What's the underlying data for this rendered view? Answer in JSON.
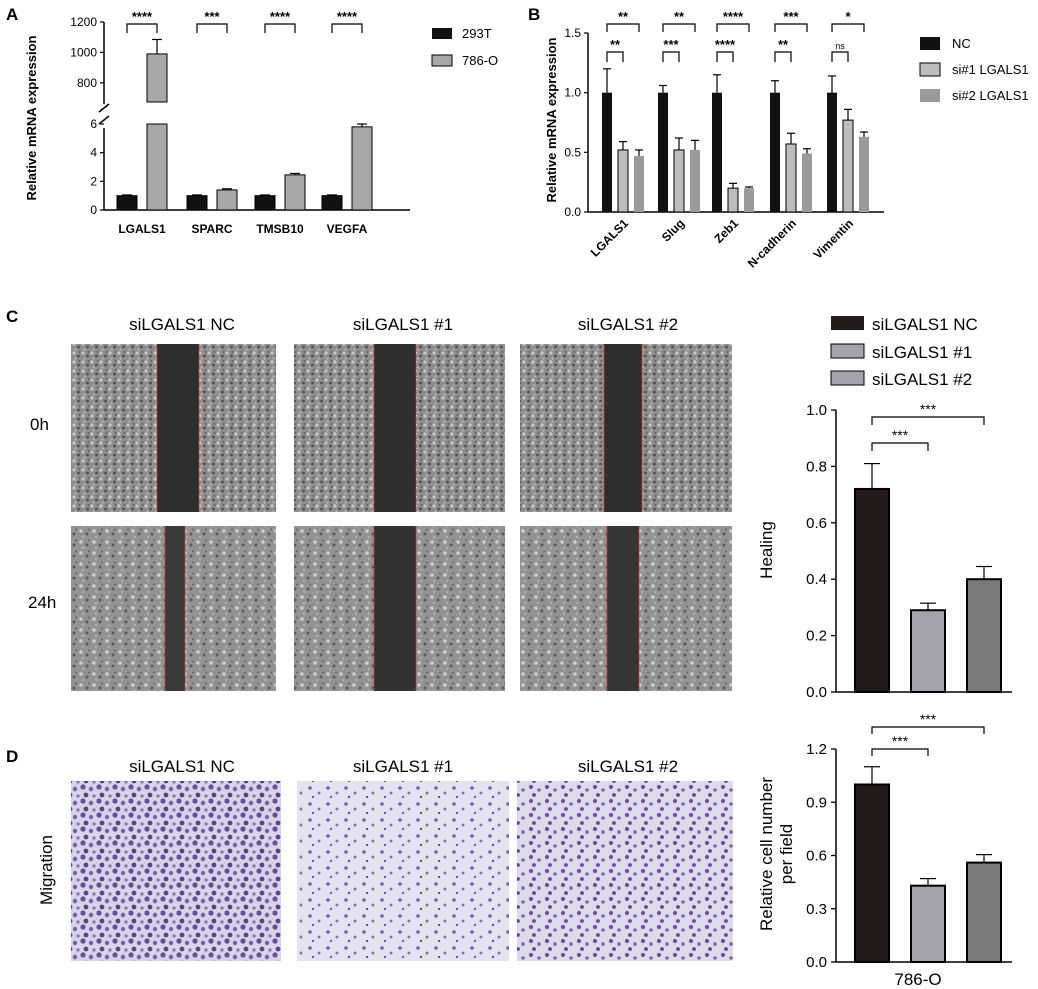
{
  "panelA": {
    "label": "A",
    "ylabel": "Relative mRNA expression",
    "categories": [
      "LGALS1",
      "SPARC",
      "TMSB10",
      "VEGFA"
    ],
    "legend": [
      "293T",
      "786-O"
    ],
    "colors": [
      "#111111",
      "#a8a8a8"
    ],
    "lowerTicks": [
      "0",
      "2",
      "4",
      "6"
    ],
    "upperTicks": [
      "800",
      "1000",
      "1200"
    ],
    "sig": [
      "****",
      "***",
      "****",
      "****"
    ]
  },
  "panelB": {
    "label": "B",
    "ylabel": "Relative mRNA expression",
    "categories": [
      "LGALS1",
      "Slug",
      "Zeb1",
      "N-cadherin",
      "Vimentin"
    ],
    "legend": [
      "NC",
      "si#1 LGALS1",
      "si#2 LGALS1"
    ],
    "colors": [
      "#111111",
      "#bdbdbd",
      "#9a9a9a"
    ],
    "ticks": [
      "0.0",
      "0.5",
      "1.0",
      "1.5"
    ],
    "sigOuter": [
      "**",
      "**",
      "****",
      "***",
      "*"
    ],
    "sigInner": [
      "**",
      "***",
      "****",
      "**",
      "ns"
    ]
  },
  "panelC": {
    "label": "C",
    "columnHeaders": [
      "siLGALS1 NC",
      "siLGALS1 #1",
      "siLGALS1 #2"
    ],
    "rowLabels": [
      "0h",
      "24h"
    ],
    "legend": [
      "siLGALS1 NC",
      "siLGALS1 #1",
      "siLGALS1 #2"
    ],
    "colors": [
      "#231a1a",
      "#a3a3ab",
      "#7a7a7a"
    ],
    "ylabel": "Healing",
    "ticks": [
      "0.0",
      "0.2",
      "0.4",
      "0.6",
      "0.8",
      "1.0"
    ],
    "sig": [
      "***",
      "***"
    ]
  },
  "panelD": {
    "label": "D",
    "columnHeaders": [
      "siLGALS1 NC",
      "siLGALS1 #1",
      "siLGALS1 #2"
    ],
    "rowLabel": "Migration",
    "ylabel_line1": "Relative cell number",
    "ylabel_line2": "per field",
    "xlabel": "786-O",
    "ticks": [
      "0.0",
      "0.3",
      "0.6",
      "0.9",
      "1.2"
    ],
    "sig": [
      "***",
      "***"
    ]
  },
  "chart_data": [
    {
      "type": "bar",
      "panel": "A",
      "ylabel": "Relative mRNA expression",
      "categories": [
        "LGALS1",
        "SPARC",
        "TMSB10",
        "VEGFA"
      ],
      "broken_axis": true,
      "lower_ylim": [
        0,
        6
      ],
      "upper_ylim": [
        700,
        1200
      ],
      "series": [
        {
          "name": "293T",
          "values": [
            1.0,
            1.0,
            1.0,
            1.0
          ],
          "errors": [
            0.05,
            0.05,
            0.05,
            0.05
          ]
        },
        {
          "name": "786-O",
          "values": [
            990,
            1.4,
            2.45,
            5.8
          ],
          "errors": [
            95,
            0.08,
            0.1,
            0.2
          ]
        }
      ]
    },
    {
      "type": "bar",
      "panel": "B",
      "ylabel": "Relative mRNA expression",
      "categories": [
        "LGALS1",
        "Slug",
        "Zeb1",
        "N-cadherin",
        "Vimentin"
      ],
      "ylim": [
        0,
        1.5
      ],
      "series": [
        {
          "name": "NC",
          "values": [
            1.0,
            1.0,
            1.0,
            1.0,
            1.0
          ],
          "errors": [
            0.2,
            0.06,
            0.15,
            0.1,
            0.14
          ]
        },
        {
          "name": "si#1 LGALS1",
          "values": [
            0.52,
            0.52,
            0.2,
            0.57,
            0.77
          ],
          "errors": [
            0.07,
            0.1,
            0.04,
            0.09,
            0.09
          ]
        },
        {
          "name": "si#2 LGALS1",
          "values": [
            0.47,
            0.52,
            0.2,
            0.49,
            0.63
          ],
          "errors": [
            0.05,
            0.08,
            0.01,
            0.04,
            0.04
          ]
        }
      ]
    },
    {
      "type": "bar",
      "panel": "C",
      "ylabel": "Healing",
      "ylim": [
        0,
        1.0
      ],
      "categories": [
        "siLGALS1 NC",
        "siLGALS1 #1",
        "siLGALS1 #2"
      ],
      "values": [
        0.72,
        0.29,
        0.4
      ],
      "errors": [
        0.09,
        0.025,
        0.045
      ]
    },
    {
      "type": "bar",
      "panel": "D",
      "ylabel": "Relative cell number per field",
      "xlabel": "786-O",
      "ylim": [
        0,
        1.2
      ],
      "categories": [
        "siLGALS1 NC",
        "siLGALS1 #1",
        "siLGALS1 #2"
      ],
      "values": [
        1.0,
        0.43,
        0.56
      ],
      "errors": [
        0.1,
        0.04,
        0.045
      ]
    }
  ]
}
